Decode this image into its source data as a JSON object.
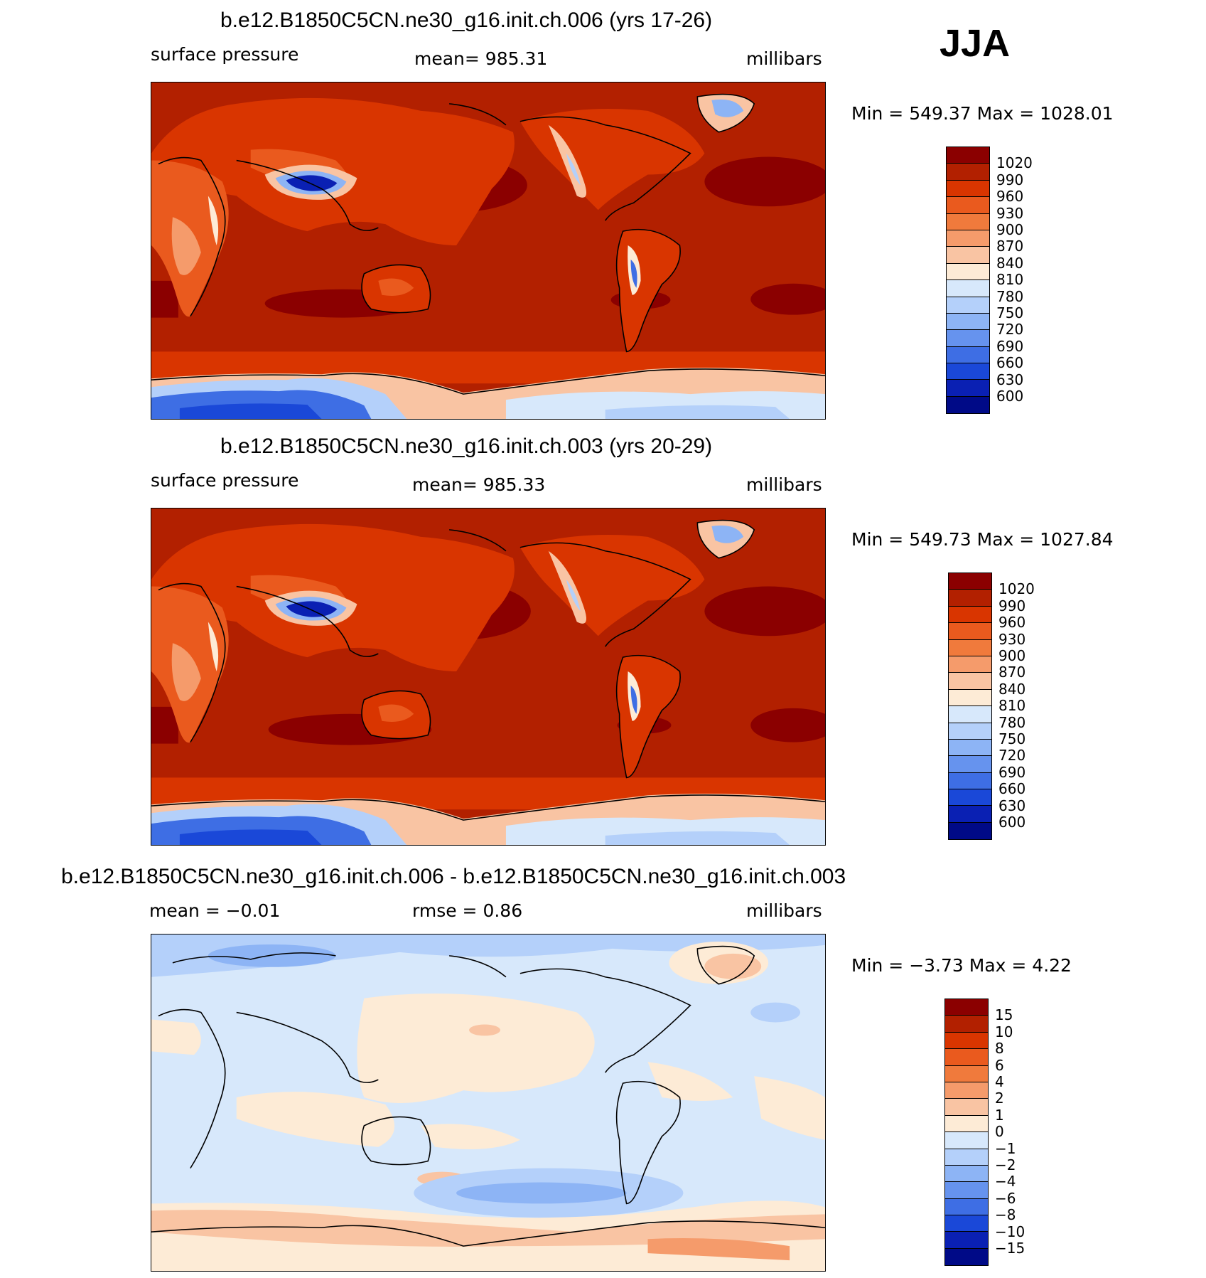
{
  "season": "JJA",
  "panels": [
    {
      "title": "b.e12.B1850C5CN.ne30_g16.init.ch.006 (yrs 17-26)",
      "left": "surface pressure",
      "center": "mean= 985.31",
      "right": "millibars",
      "minmax": "Min  =  549.37  Max  =  1028.01"
    },
    {
      "title": "b.e12.B1850C5CN.ne30_g16.init.ch.003 (yrs 20-29)",
      "left": "surface pressure",
      "center": "mean= 985.33",
      "right": "millibars",
      "minmax": "Min  =  549.73  Max  =  1027.84"
    },
    {
      "title": "b.e12.B1850C5CN.ne30_g16.init.ch.006 - b.e12.B1850C5CN.ne30_g16.init.ch.003",
      "left": "mean  =    −0.01",
      "center": "rmse  =     0.86",
      "right": "millibars",
      "minmax": "Min  =    −3.73  Max  =     4.22"
    }
  ],
  "colorbars": {
    "abs": {
      "labels": [
        "1020",
        "990",
        "960",
        "930",
        "900",
        "870",
        "840",
        "810",
        "780",
        "750",
        "720",
        "690",
        "660",
        "630",
        "600"
      ],
      "colors": [
        "#8b0000",
        "#b22000",
        "#d93500",
        "#ea5a1e",
        "#f07a3c",
        "#f59b6b",
        "#f9c4a3",
        "#fdebd6",
        "#d7e8fb",
        "#b4d0fa",
        "#8db4f5",
        "#6693ee",
        "#3e6ee4",
        "#1a48d8",
        "#0a20b3",
        "#000a87"
      ]
    },
    "diff": {
      "labels": [
        "15",
        "10",
        "8",
        "6",
        "4",
        "2",
        "1",
        "0",
        "−1",
        "−2",
        "−4",
        "−6",
        "−8",
        "−10",
        "−15"
      ],
      "colors": [
        "#8b0000",
        "#b22000",
        "#d93500",
        "#ea5a1e",
        "#f07a3c",
        "#f59b6b",
        "#f9c4a3",
        "#fdebd6",
        "#d7e8fb",
        "#b4d0fa",
        "#8db4f5",
        "#6693ee",
        "#3e6ee4",
        "#1a48d8",
        "#0a20b3",
        "#000a87"
      ]
    }
  }
}
